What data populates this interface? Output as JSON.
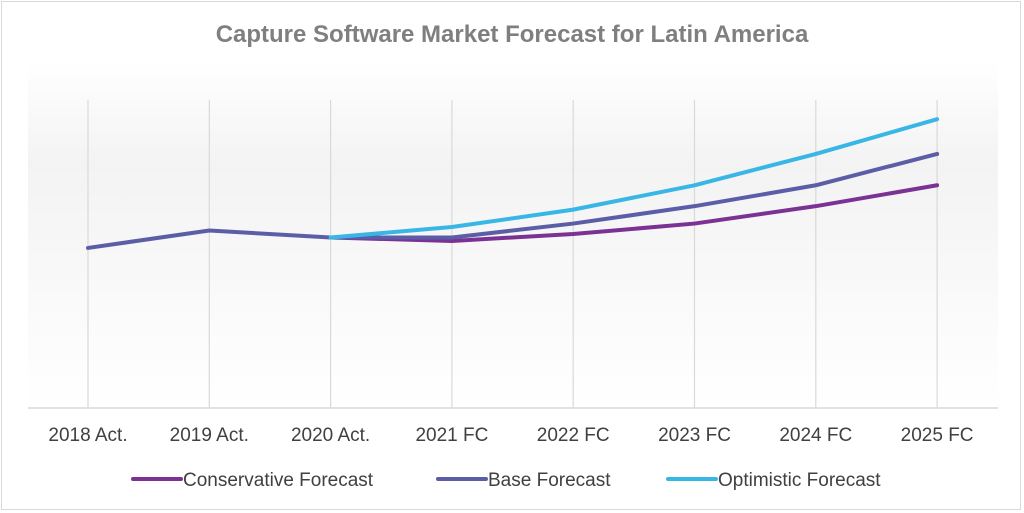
{
  "chart_data": {
    "type": "line",
    "title": "Capture Software Market Forecast for Latin America",
    "xlabel": "",
    "ylabel": "",
    "categories": [
      "2018 Act.",
      "2019 Act.",
      "2020 Act.",
      "2021 FC",
      "2022 FC",
      "2023 FC",
      "2024 FC",
      "2025 FC"
    ],
    "ylim": [
      0,
      100
    ],
    "grid": "vertical",
    "legend": "bottom",
    "series": [
      {
        "name": "Conservative Forecast",
        "color": "#7B3294",
        "values": [
          null,
          null,
          49,
          48,
          50,
          53,
          58,
          64
        ]
      },
      {
        "name": "Base Forecast",
        "color": "#5B5EA6",
        "values": [
          46,
          51,
          49,
          49,
          53,
          58,
          64,
          73
        ]
      },
      {
        "name": "Optimistic Forecast",
        "color": "#38B6E6",
        "values": [
          null,
          null,
          49,
          52,
          57,
          64,
          73,
          83
        ]
      }
    ]
  }
}
